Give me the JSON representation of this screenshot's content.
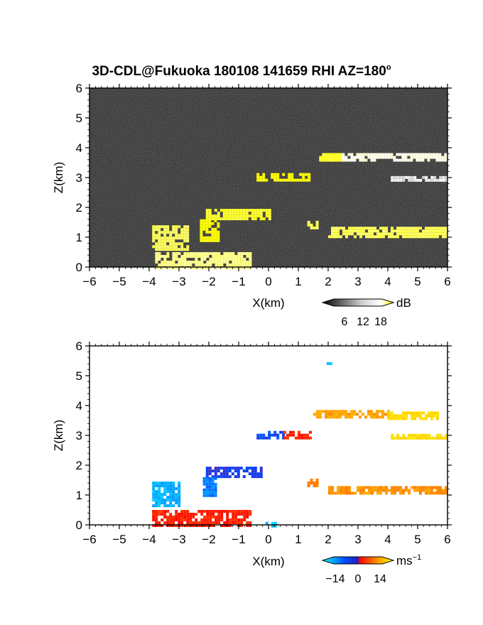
{
  "title": "3D-CDL@Fukuoka 180108 141659 RHI AZ=180",
  "title_degree": "o",
  "chart_data": [
    {
      "type": "heatmap",
      "panel": "reflectivity",
      "xlabel": "X(km)",
      "ylabel": "Z(km)",
      "xlim": [
        -6,
        6
      ],
      "ylim": [
        0,
        6
      ],
      "xticks": [
        -6,
        -5,
        -4,
        -3,
        -2,
        -1,
        0,
        1,
        2,
        3,
        4,
        5,
        6
      ],
      "yticks": [
        0,
        1,
        2,
        3,
        4,
        5,
        6
      ],
      "background": "#1e1e1e",
      "colorbar": {
        "label": "dB",
        "ticks": [
          "6",
          "12",
          "18"
        ],
        "range": [
          0,
          22
        ],
        "colors": [
          "#000000",
          "#ffffff",
          "#ffff00"
        ]
      },
      "features": [
        {
          "kind": "layer",
          "x": [
            1.7,
            6.0
          ],
          "z": [
            3.62,
            3.82
          ],
          "value": 12
        },
        {
          "kind": "layer",
          "x": [
            1.7,
            2.4
          ],
          "z": [
            3.62,
            3.82
          ],
          "value": 20
        },
        {
          "kind": "layer",
          "x": [
            4.1,
            6.0
          ],
          "z": [
            2.88,
            3.05
          ],
          "value": 10
        },
        {
          "kind": "layer",
          "x": [
            -0.4,
            1.4
          ],
          "z": [
            2.9,
            3.15
          ],
          "value": 22
        },
        {
          "kind": "layer",
          "x": [
            -2.1,
            0.0
          ],
          "z": [
            1.6,
            1.95
          ],
          "value": 20
        },
        {
          "kind": "layer",
          "x": [
            -2.3,
            -1.7
          ],
          "z": [
            0.9,
            1.6
          ],
          "value": 22
        },
        {
          "kind": "layer",
          "x": [
            -3.9,
            -2.7
          ],
          "z": [
            0.6,
            1.4
          ],
          "value": 18
        },
        {
          "kind": "layer",
          "x": [
            1.3,
            1.6
          ],
          "z": [
            1.35,
            1.55
          ],
          "value": 18
        },
        {
          "kind": "layer",
          "x": [
            2.0,
            6.0
          ],
          "z": [
            1.05,
            1.35
          ],
          "value": 18
        },
        {
          "kind": "layer",
          "x": [
            -3.8,
            -0.6
          ],
          "z": [
            0.0,
            0.5
          ],
          "value": 16
        }
      ]
    },
    {
      "type": "heatmap",
      "panel": "doppler_velocity",
      "xlabel": "X(km)",
      "ylabel": "Z(km)",
      "xlim": [
        -6,
        6
      ],
      "ylim": [
        0,
        6
      ],
      "xticks": [
        -6,
        -5,
        -4,
        -3,
        -2,
        -1,
        0,
        1,
        2,
        3,
        4,
        5,
        6
      ],
      "yticks": [
        0,
        1,
        2,
        3,
        4,
        5,
        6
      ],
      "background": "#ffffff",
      "colorbar": {
        "label": "ms",
        "label_exp": "−1",
        "ticks": [
          "−14",
          "0",
          "14"
        ],
        "range": [
          -20,
          20
        ],
        "colors": [
          "#00ffff",
          "#0040ff",
          "#ff0000",
          "#ffa500",
          "#ffff00"
        ]
      },
      "features": [
        {
          "kind": "layer",
          "x": [
            1.5,
            4.0
          ],
          "z": [
            3.65,
            3.85
          ],
          "value": 10
        },
        {
          "kind": "layer",
          "x": [
            4.0,
            5.7
          ],
          "z": [
            3.6,
            3.8
          ],
          "value": 16
        },
        {
          "kind": "layer",
          "x": [
            4.1,
            6.0
          ],
          "z": [
            2.88,
            3.05
          ],
          "value": 16
        },
        {
          "kind": "layer",
          "x": [
            -0.4,
            0.5
          ],
          "z": [
            2.9,
            3.15
          ],
          "value": -10
        },
        {
          "kind": "layer",
          "x": [
            0.5,
            1.4
          ],
          "z": [
            2.9,
            3.15
          ],
          "value": 2
        },
        {
          "kind": "layer",
          "x": [
            -2.1,
            -0.2
          ],
          "z": [
            1.6,
            1.95
          ],
          "value": -9
        },
        {
          "kind": "layer",
          "x": [
            -2.2,
            -1.8
          ],
          "z": [
            1.0,
            1.6
          ],
          "value": -13
        },
        {
          "kind": "layer",
          "x": [
            -3.9,
            -3.0
          ],
          "z": [
            0.65,
            1.45
          ],
          "value": -16
        },
        {
          "kind": "layer",
          "x": [
            1.3,
            1.6
          ],
          "z": [
            1.35,
            1.55
          ],
          "value": 8
        },
        {
          "kind": "layer",
          "x": [
            2.0,
            6.0
          ],
          "z": [
            1.05,
            1.3
          ],
          "value": 9
        },
        {
          "kind": "layer",
          "x": [
            -3.9,
            -0.6
          ],
          "z": [
            0.0,
            0.5
          ],
          "value": 2
        },
        {
          "kind": "layer",
          "x": [
            -0.1,
            0.2
          ],
          "z": [
            0.0,
            0.1
          ],
          "value": -17
        },
        {
          "kind": "layer",
          "x": [
            1.95,
            2.05
          ],
          "z": [
            5.45,
            5.55
          ],
          "value": -17
        }
      ]
    }
  ]
}
